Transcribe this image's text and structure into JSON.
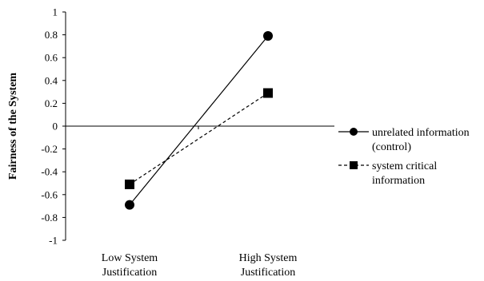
{
  "chart_data": {
    "type": "line",
    "title": "",
    "xlabel": "",
    "ylabel": "Fairness of the System",
    "categories": [
      [
        "Low System",
        "Justification"
      ],
      [
        "High System",
        "Justification"
      ]
    ],
    "yticks": [
      "1",
      "0.8",
      "0.6",
      "0.4",
      "0.2",
      "0",
      "-0.2",
      "-0.4",
      "-0.6",
      "-0.8",
      "-1"
    ],
    "ylim": [
      -1,
      1
    ],
    "grid": false,
    "legend_position": "right",
    "series": [
      {
        "name_lines": [
          "unrelated information",
          "(control)"
        ],
        "values": [
          -0.69,
          0.79
        ],
        "marker": "circle",
        "line_style": "solid",
        "color": "#000000"
      },
      {
        "name_lines": [
          "system critical",
          "information"
        ],
        "values": [
          -0.51,
          0.29
        ],
        "marker": "square",
        "line_style": "dashed",
        "color": "#000000"
      }
    ]
  }
}
